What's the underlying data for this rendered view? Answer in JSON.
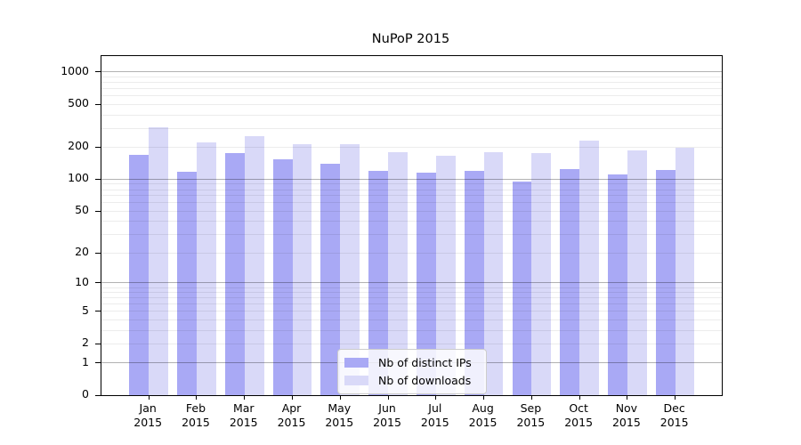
{
  "chart_data": {
    "type": "bar",
    "title": "NuPoP 2015",
    "xlabel": "",
    "ylabel": "",
    "y_scale": "log10(1+y)",
    "ylim": [
      0,
      1400
    ],
    "y_ticks": [
      0,
      1,
      2,
      5,
      10,
      20,
      50,
      100,
      200,
      500,
      1000
    ],
    "gridlines": {
      "major": [
        1,
        10,
        100,
        1000
      ],
      "minor": [
        2,
        3,
        4,
        5,
        6,
        7,
        8,
        9,
        20,
        30,
        40,
        50,
        60,
        70,
        80,
        90,
        200,
        300,
        400,
        500,
        600,
        700,
        800,
        900
      ]
    },
    "grid": "horizontal",
    "legend_position": "bottom-center",
    "categories": [
      "Jan",
      "Feb",
      "Mar",
      "Apr",
      "May",
      "Jun",
      "Jul",
      "Aug",
      "Sep",
      "Oct",
      "Nov",
      "Dec"
    ],
    "year": "2015",
    "series": [
      {
        "name": "Nb of distinct IPs",
        "color": "#a9a9f5",
        "values": [
          170,
          118,
          175,
          153,
          141,
          120,
          115,
          120,
          96,
          124,
          111,
          122
        ]
      },
      {
        "name": "Nb of downloads",
        "color": "#d9d9f8",
        "values": [
          305,
          220,
          252,
          215,
          213,
          180,
          165,
          179,
          177,
          231,
          187,
          196
        ]
      }
    ]
  }
}
